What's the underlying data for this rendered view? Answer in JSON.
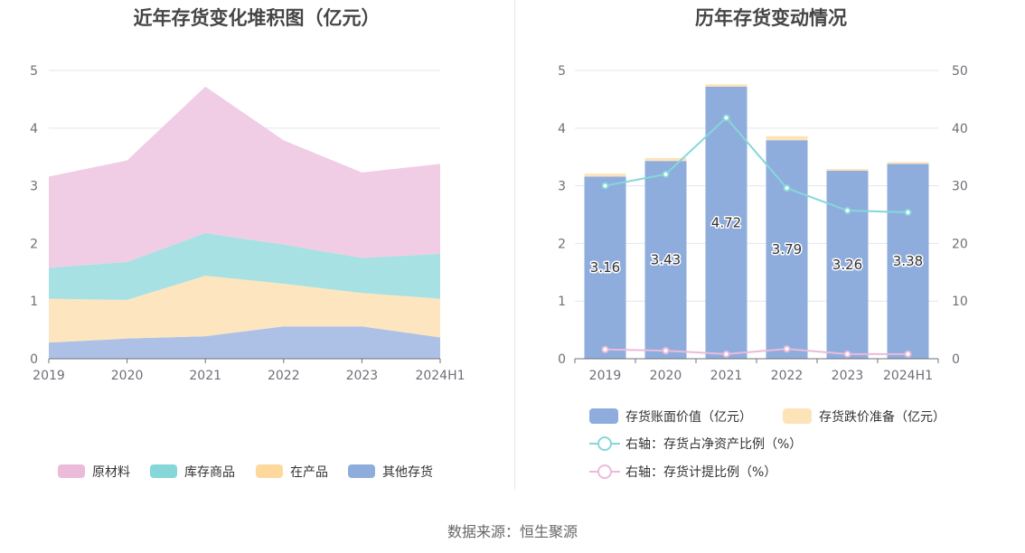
{
  "chart_data": [
    {
      "type": "area",
      "title": "近年存货变化堆积图（亿元）",
      "categories": [
        "2019",
        "2020",
        "2021",
        "2022",
        "2023",
        "2024H1"
      ],
      "stacked": true,
      "ylim": [
        0,
        5
      ],
      "yticks": [
        "0",
        "1",
        "2",
        "3",
        "4",
        "5"
      ],
      "grid": true,
      "legend_position": "bottom",
      "series": [
        {
          "name": "其他存货",
          "color": "#adc1e6",
          "legend_color": "#8eaddd",
          "values": [
            0.28,
            0.35,
            0.39,
            0.56,
            0.56,
            0.37
          ]
        },
        {
          "name": "在产品",
          "color": "#fde5bf",
          "legend_color": "#fdd99e",
          "values": [
            0.76,
            0.67,
            1.05,
            0.74,
            0.58,
            0.67
          ]
        },
        {
          "name": "库存商品",
          "color": "#a8e1e3",
          "legend_color": "#86d7d9",
          "values": [
            0.54,
            0.66,
            0.74,
            0.68,
            0.61,
            0.78
          ]
        },
        {
          "name": "原材料",
          "color": "#f0cde4",
          "legend_color": "#ebbbd9",
          "values": [
            1.58,
            1.76,
            2.54,
            1.81,
            1.48,
            1.56
          ]
        }
      ]
    },
    {
      "type": "bar",
      "title": "历年存货变动情况",
      "categories": [
        "2019",
        "2020",
        "2021",
        "2022",
        "2023",
        "2024H1"
      ],
      "stacked": true,
      "ylim": [
        0,
        5
      ],
      "yticks": [
        "0",
        "1",
        "2",
        "3",
        "4",
        "5"
      ],
      "y2lim": [
        0,
        50
      ],
      "y2ticks": [
        "0",
        "10",
        "20",
        "30",
        "40",
        "50"
      ],
      "grid": true,
      "legend_position": "bottom",
      "series": [
        {
          "name": "存货账面价值（亿元）",
          "kind": "bar",
          "color": "#8eaddd",
          "values": [
            3.16,
            3.43,
            4.72,
            3.79,
            3.26,
            3.38
          ],
          "labels": [
            "3.16",
            "3.43",
            "4.72",
            "3.79",
            "3.26",
            "3.38"
          ]
        },
        {
          "name": "存货跌价准备（亿元）",
          "kind": "bar",
          "color": "#fde3b8",
          "values": [
            0.05,
            0.05,
            0.04,
            0.07,
            0.03,
            0.03
          ]
        },
        {
          "name": "右轴：存货占净资产比例（%）",
          "kind": "line",
          "axis": "right",
          "color": "#86d7d9",
          "values": [
            30.0,
            32.0,
            41.8,
            29.6,
            25.7,
            25.4
          ]
        },
        {
          "name": "右轴：存货计提比例（%）",
          "kind": "line",
          "axis": "right",
          "color": "#ebbbd9",
          "values": [
            1.6,
            1.4,
            0.8,
            1.7,
            0.8,
            0.8
          ]
        }
      ]
    }
  ],
  "footer": {
    "source": "数据来源：恒生聚源"
  }
}
